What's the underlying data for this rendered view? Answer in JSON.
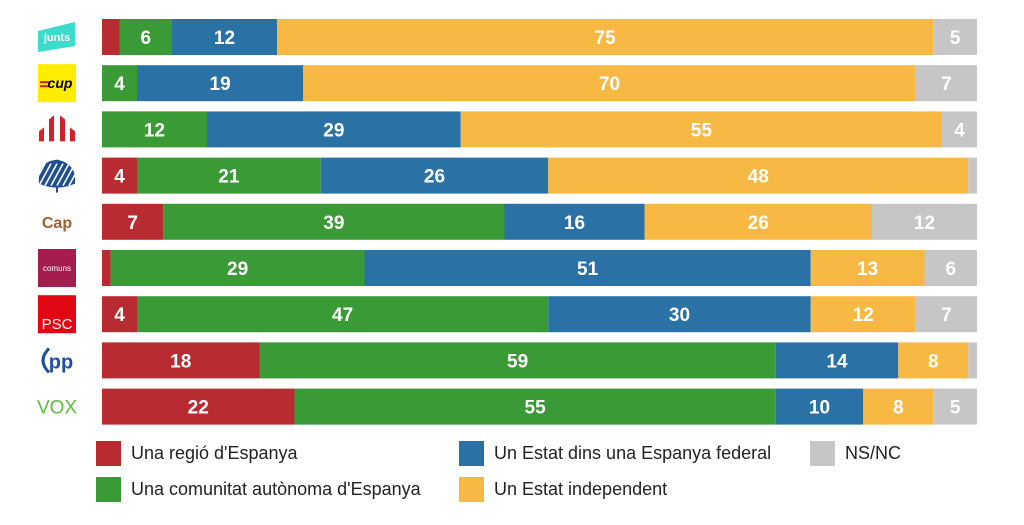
{
  "chart_data": {
    "type": "bar",
    "orientation": "horizontal",
    "stacked": true,
    "percent": true,
    "title": "",
    "xlabel": "",
    "ylabel": "",
    "xlim": [
      0,
      100
    ],
    "grid": false,
    "legend_position": "bottom",
    "categories": [
      "Junts",
      "CUP",
      "ERC",
      "Aliança Catalana",
      "Cs",
      "Comuns",
      "PSC",
      "PP",
      "Vox"
    ],
    "category_logos": [
      {
        "name": "junts-logo",
        "text": "junts",
        "bg": "#3ddbcb",
        "fg": "#ffffff"
      },
      {
        "name": "cup-logo",
        "text": "cup",
        "bg": "#ffed00",
        "fg": "#000000"
      },
      {
        "name": "erc-logo",
        "text": "",
        "bg": "",
        "fg": "#d0222a"
      },
      {
        "name": "alianca-catalana-logo",
        "text": "",
        "bg": "",
        "fg": "#1d4f91"
      },
      {
        "name": "cap-logo",
        "text": "Cap",
        "bg": "",
        "fg": "#a0602a"
      },
      {
        "name": "comuns-logo",
        "text": "comuns",
        "bg": "#a51d4f",
        "fg": "#ffffff"
      },
      {
        "name": "psc-logo",
        "text": "PSC",
        "bg": "#e30613",
        "fg": "#ffffff"
      },
      {
        "name": "pp-logo",
        "text": "pp",
        "bg": "",
        "fg": "#1d4f9c"
      },
      {
        "name": "vox-logo",
        "text": "VOX",
        "bg": "",
        "fg": "#5ac035"
      }
    ],
    "series": [
      {
        "name": "Una regió d'Espanya",
        "color": "#b82b31",
        "values": [
          2,
          0,
          0,
          4,
          7,
          1,
          4,
          18,
          22
        ],
        "labels": [
          "",
          "",
          "",
          "4",
          "7",
          "",
          "4",
          "18",
          "22"
        ]
      },
      {
        "name": "Una comunitat autònoma d'Espanya",
        "color": "#3a9a36",
        "values": [
          6,
          4,
          12,
          21,
          39,
          29,
          47,
          59,
          55
        ],
        "labels": [
          "6",
          "4",
          "12",
          "21",
          "39",
          "29",
          "47",
          "59",
          "55"
        ]
      },
      {
        "name": "Un Estat dins una Espanya federal",
        "color": "#2a72a6",
        "values": [
          12,
          19,
          29,
          26,
          16,
          51,
          30,
          14,
          10
        ],
        "labels": [
          "12",
          "19",
          "29",
          "26",
          "16",
          "51",
          "30",
          "14",
          "10"
        ]
      },
      {
        "name": "Un Estat independent",
        "color": "#f7b944",
        "values": [
          75,
          70,
          55,
          48,
          26,
          13,
          12,
          8,
          8
        ],
        "labels": [
          "75",
          "70",
          "55",
          "48",
          "26",
          "13",
          "12",
          "8",
          "8"
        ]
      },
      {
        "name": "NS/NC",
        "color": "#c6c6c6",
        "values": [
          5,
          7,
          4,
          1,
          12,
          6,
          7,
          1,
          5
        ],
        "labels": [
          "5",
          "7",
          "4",
          "",
          "12",
          "6",
          "7",
          "",
          "5"
        ]
      }
    ]
  },
  "legend": {
    "items": [
      {
        "label": "Una regió d'Espanya",
        "color": "#b82b31"
      },
      {
        "label": "Una comunitat autònoma d'Espanya",
        "color": "#3a9a36"
      },
      {
        "label": "Un Estat dins una Espanya federal",
        "color": "#2a72a6"
      },
      {
        "label": "Un Estat independent",
        "color": "#f7b944"
      },
      {
        "label": "NS/NC",
        "color": "#c6c6c6"
      }
    ]
  }
}
